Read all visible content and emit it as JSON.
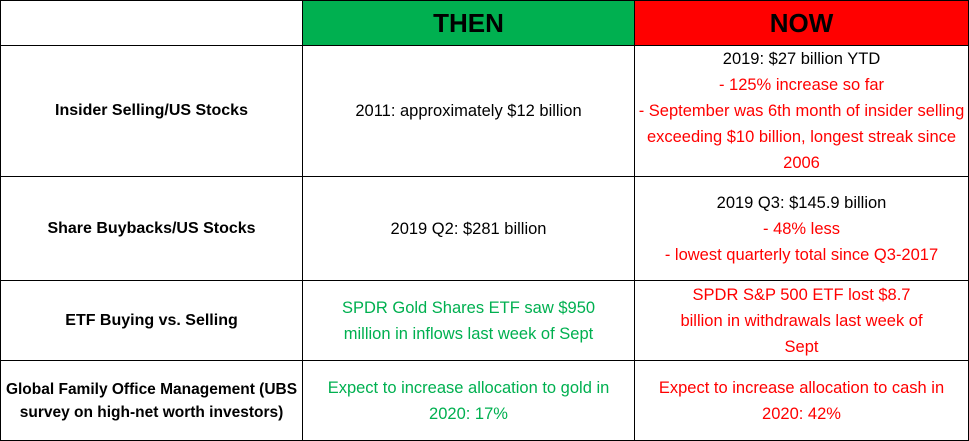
{
  "colors": {
    "then_header": "#00b050",
    "now_header": "#ff0000",
    "red_text": "#ff0000",
    "green_text": "#00b050"
  },
  "header": {
    "then": "THEN",
    "now": "NOW"
  },
  "rows": [
    {
      "label": "Insider Selling/US Stocks",
      "then": "2011: approximately $12 billion",
      "now": {
        "line1": "2019: $27 billion YTD",
        "line2": "- 125% increase so far",
        "line3": "- September was 6th month of insider selling exceeding $10 billion, longest streak since 2006"
      }
    },
    {
      "label": "Share Buybacks/US Stocks",
      "then": "2019 Q2: $281 billion",
      "now": {
        "line1": "2019 Q3: $145.9 billion",
        "line2": "- 48% less",
        "line3": "- lowest quarterly total since Q3-2017"
      }
    },
    {
      "label": "ETF Buying vs. Selling",
      "then": "SPDR Gold Shares ETF saw $950 million in inflows last week of Sept",
      "now": "SPDR S&P 500 ETF lost $8.7 billion in withdrawals last week of Sept"
    },
    {
      "label": "Global Family Office Management (UBS survey on high-net worth investors)",
      "then": "Expect to increase allocation to gold in 2020: 17%",
      "now": "Expect to increase allocation to cash in 2020: 42%"
    }
  ]
}
